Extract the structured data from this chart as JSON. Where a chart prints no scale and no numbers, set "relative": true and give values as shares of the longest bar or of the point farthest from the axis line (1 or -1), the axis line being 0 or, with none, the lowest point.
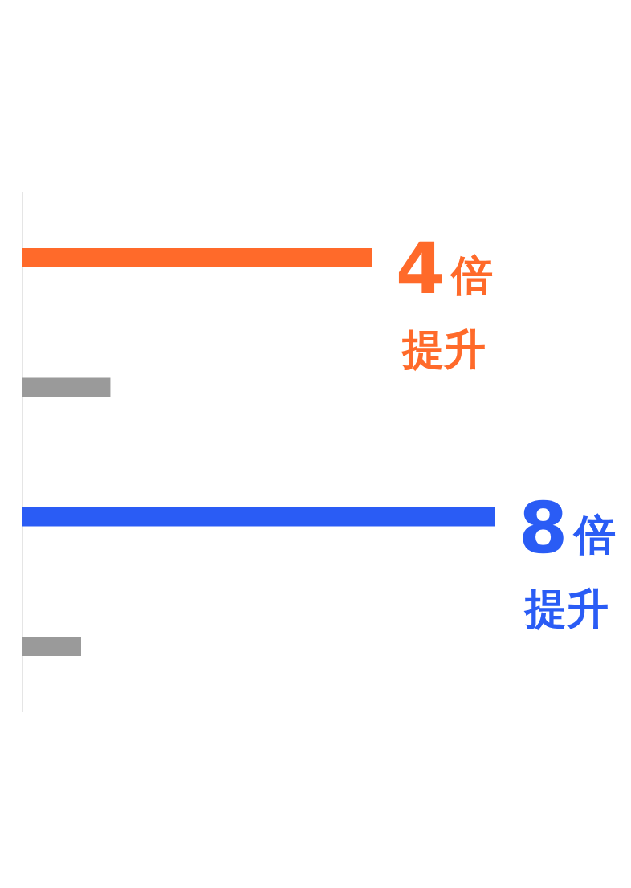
{
  "chart_data": {
    "type": "bar",
    "orientation": "horizontal",
    "relative": true,
    "categories": [
      null,
      null,
      null,
      null
    ],
    "values": [
      0.74,
      0.185,
      1,
      0.123
    ],
    "colors": [
      "#ff6a2a",
      "#9a9a9a",
      "#2a5cf5",
      "#9a9a9a"
    ],
    "annotations": [
      "4倍提升",
      "8倍提升"
    ],
    "legend": false
  }
}
